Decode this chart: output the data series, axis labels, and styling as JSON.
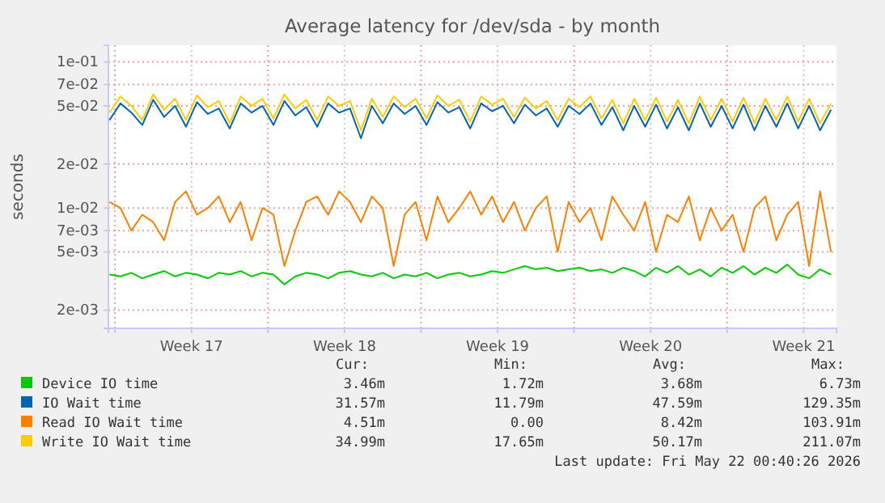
{
  "chart_data": {
    "type": "line",
    "title": "Average latency for /dev/sda - by month",
    "ylabel": "seconds",
    "log": true,
    "grid": true,
    "legend": "bottom",
    "line_style": "solid",
    "marker": "none",
    "xlim": [
      "2026-04-19T16:48",
      "2026-05-23T00:00"
    ],
    "xticks": [
      {
        "value": "2026-04-20",
        "label": null
      },
      {
        "value": "2026-04-23T12:00",
        "label": "Week 17"
      },
      {
        "value": "2026-04-27",
        "label": null
      },
      {
        "value": "2026-04-30T12:00",
        "label": "Week 18"
      },
      {
        "value": "2026-05-04",
        "label": null
      },
      {
        "value": "2026-05-07T12:00",
        "label": "Week 19"
      },
      {
        "value": "2026-05-11",
        "label": null
      },
      {
        "value": "2026-05-14T12:00",
        "label": "Week 20"
      },
      {
        "value": "2026-05-18",
        "label": null
      },
      {
        "value": "2026-05-21T12:00",
        "label": "Week 21"
      }
    ],
    "ylim": [
      0.0015,
      0.13
    ],
    "yticks": [
      {
        "value": 0.002,
        "label": "2e-03"
      },
      {
        "value": 0.005,
        "label": "5e-03"
      },
      {
        "value": 0.007,
        "label": "7e-03"
      },
      {
        "value": 0.01,
        "label": "1e-02"
      },
      {
        "value": 0.02,
        "label": "2e-02"
      },
      {
        "value": 0.05,
        "label": "5e-02"
      },
      {
        "value": 0.07,
        "label": "7e-02"
      },
      {
        "value": 0.1,
        "label": "1e-01"
      }
    ],
    "x": [
      "2026-04-19T18:00",
      "2026-04-20T06:00",
      "2026-04-20T18:00",
      "2026-04-21T06:00",
      "2026-04-21T18:00",
      "2026-04-22T06:00",
      "2026-04-22T18:00",
      "2026-04-23T06:00",
      "2026-04-23T18:00",
      "2026-04-24T06:00",
      "2026-04-24T18:00",
      "2026-04-25T06:00",
      "2026-04-25T18:00",
      "2026-04-26T06:00",
      "2026-04-26T18:00",
      "2026-04-27T06:00",
      "2026-04-27T18:00",
      "2026-04-28T06:00",
      "2026-04-28T18:00",
      "2026-04-29T06:00",
      "2026-04-29T18:00",
      "2026-04-30T06:00",
      "2026-04-30T18:00",
      "2026-05-01T06:00",
      "2026-05-01T18:00",
      "2026-05-02T06:00",
      "2026-05-02T18:00",
      "2026-05-03T06:00",
      "2026-05-03T18:00",
      "2026-05-04T06:00",
      "2026-05-04T18:00",
      "2026-05-05T06:00",
      "2026-05-05T18:00",
      "2026-05-06T06:00",
      "2026-05-06T18:00",
      "2026-05-07T06:00",
      "2026-05-07T18:00",
      "2026-05-08T06:00",
      "2026-05-08T18:00",
      "2026-05-09T06:00",
      "2026-05-09T18:00",
      "2026-05-10T06:00",
      "2026-05-10T18:00",
      "2026-05-11T06:00",
      "2026-05-11T18:00",
      "2026-05-12T06:00",
      "2026-05-12T18:00",
      "2026-05-13T06:00",
      "2026-05-13T18:00",
      "2026-05-14T06:00",
      "2026-05-14T18:00",
      "2026-05-15T06:00",
      "2026-05-15T18:00",
      "2026-05-16T06:00",
      "2026-05-16T18:00",
      "2026-05-17T06:00",
      "2026-05-17T18:00",
      "2026-05-18T06:00",
      "2026-05-18T18:00",
      "2026-05-19T06:00",
      "2026-05-19T18:00",
      "2026-05-20T06:00",
      "2026-05-20T18:00",
      "2026-05-21T06:00",
      "2026-05-21T18:00",
      "2026-05-22T06:00",
      "2026-05-22T18:00"
    ],
    "series": [
      {
        "name": "Device IO time",
        "color": "#00cc00",
        "values": [
          0.0035,
          0.0034,
          0.0036,
          0.0033,
          0.0035,
          0.0037,
          0.0034,
          0.0036,
          0.0035,
          0.0033,
          0.0036,
          0.0035,
          0.0037,
          0.0034,
          0.0036,
          0.0035,
          0.003,
          0.0034,
          0.0036,
          0.0035,
          0.0033,
          0.0036,
          0.0037,
          0.0035,
          0.0034,
          0.0036,
          0.0033,
          0.0035,
          0.0034,
          0.0036,
          0.0033,
          0.0035,
          0.0036,
          0.0034,
          0.0035,
          0.0037,
          0.0036,
          0.0038,
          0.004,
          0.0038,
          0.0039,
          0.0037,
          0.0038,
          0.0039,
          0.0037,
          0.0038,
          0.0036,
          0.0039,
          0.0037,
          0.0034,
          0.0039,
          0.0036,
          0.004,
          0.0035,
          0.0038,
          0.0034,
          0.0039,
          0.0036,
          0.004,
          0.0035,
          0.0039,
          0.0036,
          0.0041,
          0.0035,
          0.0033,
          0.0038,
          0.0035
        ]
      },
      {
        "name": "IO Wait time",
        "color": "#0066b3",
        "values": [
          0.04,
          0.052,
          0.045,
          0.037,
          0.055,
          0.042,
          0.05,
          0.036,
          0.053,
          0.044,
          0.048,
          0.035,
          0.052,
          0.045,
          0.05,
          0.037,
          0.054,
          0.043,
          0.049,
          0.036,
          0.052,
          0.045,
          0.048,
          0.03,
          0.05,
          0.038,
          0.052,
          0.044,
          0.05,
          0.037,
          0.053,
          0.045,
          0.049,
          0.035,
          0.052,
          0.046,
          0.05,
          0.038,
          0.051,
          0.043,
          0.048,
          0.036,
          0.05,
          0.044,
          0.052,
          0.037,
          0.049,
          0.034,
          0.05,
          0.036,
          0.051,
          0.035,
          0.049,
          0.034,
          0.052,
          0.036,
          0.05,
          0.035,
          0.051,
          0.034,
          0.05,
          0.036,
          0.052,
          0.035,
          0.05,
          0.034,
          0.047
        ]
      },
      {
        "name": "Read IO Wait time",
        "color": "#ff8000",
        "values": [
          0.011,
          0.01,
          0.007,
          0.009,
          0.008,
          0.006,
          0.011,
          0.013,
          0.009,
          0.01,
          0.012,
          0.008,
          0.011,
          0.006,
          0.01,
          0.009,
          0.004,
          0.007,
          0.011,
          0.012,
          0.009,
          0.013,
          0.011,
          0.008,
          0.012,
          0.01,
          0.004,
          0.009,
          0.011,
          0.006,
          0.012,
          0.008,
          0.01,
          0.013,
          0.009,
          0.012,
          0.008,
          0.011,
          0.007,
          0.01,
          0.012,
          0.005,
          0.011,
          0.008,
          0.01,
          0.006,
          0.012,
          0.009,
          0.007,
          0.011,
          0.005,
          0.009,
          0.008,
          0.012,
          0.006,
          0.01,
          0.007,
          0.009,
          0.005,
          0.01,
          0.012,
          0.006,
          0.009,
          0.011,
          0.004,
          0.013,
          0.005
        ]
      },
      {
        "name": "Write IO Wait time",
        "color": "#ffcc00",
        "values": [
          0.045,
          0.058,
          0.05,
          0.04,
          0.06,
          0.047,
          0.056,
          0.04,
          0.059,
          0.049,
          0.054,
          0.038,
          0.058,
          0.05,
          0.056,
          0.041,
          0.06,
          0.048,
          0.055,
          0.04,
          0.058,
          0.05,
          0.054,
          0.034,
          0.056,
          0.042,
          0.058,
          0.049,
          0.056,
          0.041,
          0.059,
          0.05,
          0.055,
          0.039,
          0.058,
          0.051,
          0.056,
          0.042,
          0.057,
          0.048,
          0.054,
          0.04,
          0.056,
          0.049,
          0.058,
          0.041,
          0.055,
          0.038,
          0.056,
          0.04,
          0.057,
          0.039,
          0.055,
          0.038,
          0.058,
          0.04,
          0.056,
          0.039,
          0.057,
          0.038,
          0.056,
          0.04,
          0.058,
          0.039,
          0.056,
          0.038,
          0.052
        ]
      }
    ],
    "annotations": [
      "Cur:",
      "Min:",
      "Avg:",
      "Max:",
      "3.46m",
      "1.72m",
      "3.68m",
      "6.73m",
      "31.57m",
      "11.79m",
      "47.59m",
      "129.35m",
      "4.51m",
      "0.00",
      "8.42m",
      "103.91m",
      "34.99m",
      "17.65m",
      "50.17m",
      "211.07m",
      "Last update: Fri May 22 00:40:26 2026"
    ]
  }
}
